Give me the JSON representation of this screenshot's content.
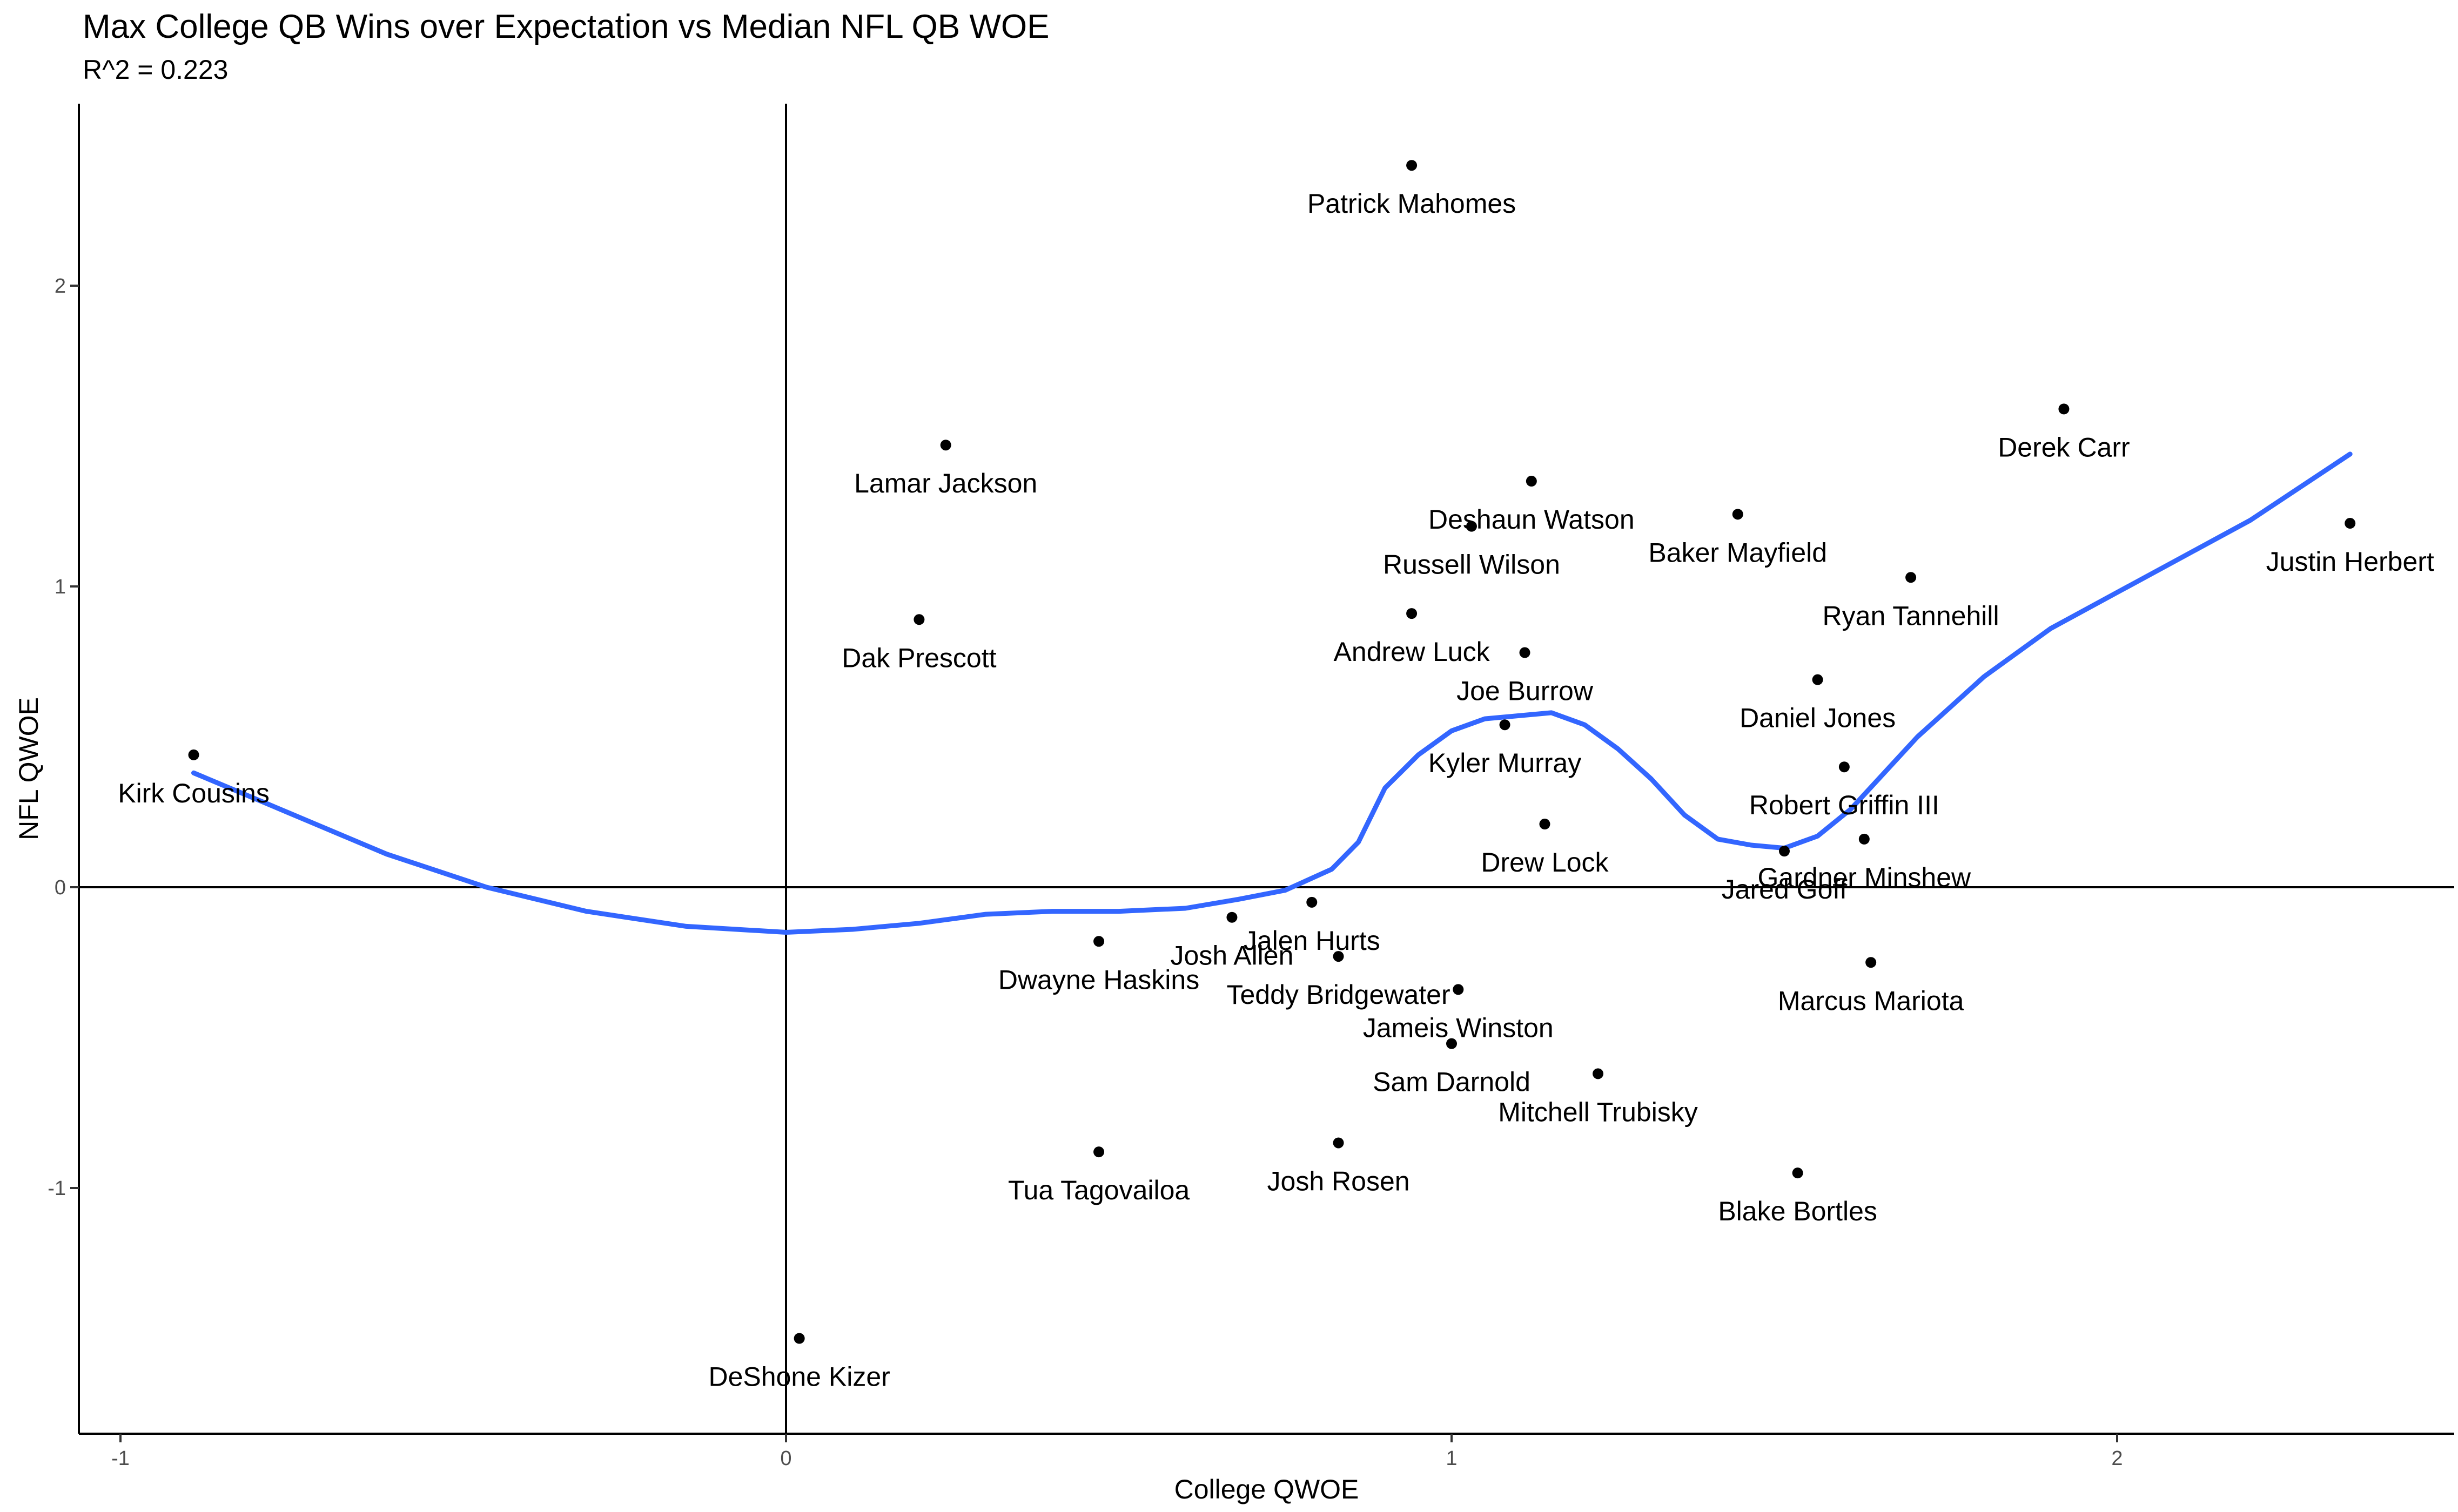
{
  "chart_data": {
    "type": "scatter",
    "title": "Max College QB Wins over Expectation vs Median NFL QB WOE",
    "subtitle": "R^2 = 0.223",
    "xlabel": "College QWOE",
    "ylabel": "NFL QWOE",
    "xlim": [
      -1.06,
      2.5
    ],
    "ylim": [
      -1.83,
      2.6
    ],
    "x_ticks": [
      -1,
      0,
      1,
      2
    ],
    "y_ticks": [
      -1,
      0,
      1,
      2
    ],
    "reference_lines": {
      "x": 0,
      "y": 0
    },
    "grid": false,
    "points": [
      {
        "label": "Patrick Mahomes",
        "x": 0.94,
        "y": 2.4
      },
      {
        "label": "Derek Carr",
        "x": 1.92,
        "y": 1.59
      },
      {
        "label": "Lamar Jackson",
        "x": 0.24,
        "y": 1.47
      },
      {
        "label": "Deshaun Watson",
        "x": 1.12,
        "y": 1.35
      },
      {
        "label": "Baker Mayfield",
        "x": 1.43,
        "y": 1.24
      },
      {
        "label": "Justin Herbert",
        "x": 2.35,
        "y": 1.21
      },
      {
        "label": "Russell Wilson",
        "x": 1.03,
        "y": 1.2
      },
      {
        "label": "Ryan Tannehill",
        "x": 1.69,
        "y": 1.03
      },
      {
        "label": "Andrew Luck",
        "x": 0.94,
        "y": 0.91
      },
      {
        "label": "Dak Prescott",
        "x": 0.2,
        "y": 0.89
      },
      {
        "label": "Joe Burrow",
        "x": 1.11,
        "y": 0.78
      },
      {
        "label": "Daniel Jones",
        "x": 1.55,
        "y": 0.69
      },
      {
        "label": "Kyler Murray",
        "x": 1.08,
        "y": 0.54
      },
      {
        "label": "Kirk Cousins",
        "x": -0.89,
        "y": 0.44
      },
      {
        "label": "Robert Griffin III",
        "x": 1.59,
        "y": 0.4
      },
      {
        "label": "Drew Lock",
        "x": 1.14,
        "y": 0.21
      },
      {
        "label": "Gardner Minshew",
        "x": 1.62,
        "y": 0.16
      },
      {
        "label": "Jared Goff",
        "x": 1.5,
        "y": 0.12
      },
      {
        "label": "Jalen Hurts",
        "x": 0.79,
        "y": -0.05
      },
      {
        "label": "Josh Allen",
        "x": 0.67,
        "y": -0.1
      },
      {
        "label": "Dwayne Haskins",
        "x": 0.47,
        "y": -0.18
      },
      {
        "label": "Teddy Bridgewater",
        "x": 0.83,
        "y": -0.23
      },
      {
        "label": "Marcus Mariota",
        "x": 1.63,
        "y": -0.25
      },
      {
        "label": "Jameis Winston",
        "x": 1.01,
        "y": -0.34
      },
      {
        "label": "Sam Darnold",
        "x": 1.0,
        "y": -0.52
      },
      {
        "label": "Mitchell Trubisky",
        "x": 1.22,
        "y": -0.62
      },
      {
        "label": "Josh Rosen",
        "x": 0.83,
        "y": -0.85
      },
      {
        "label": "Tua Tagovailoa",
        "x": 0.47,
        "y": -0.88
      },
      {
        "label": "Blake Bortles",
        "x": 1.52,
        "y": -0.95
      },
      {
        "label": "DeShone Kizer",
        "x": 0.02,
        "y": -1.5
      }
    ],
    "smooth_curve": {
      "color": "#3366ff",
      "x": [
        -0.89,
        -0.75,
        -0.6,
        -0.45,
        -0.3,
        -0.15,
        0.0,
        0.1,
        0.2,
        0.3,
        0.4,
        0.5,
        0.6,
        0.68,
        0.75,
        0.78,
        0.82,
        0.86,
        0.9,
        0.95,
        1.0,
        1.05,
        1.1,
        1.15,
        1.2,
        1.25,
        1.3,
        1.35,
        1.4,
        1.45,
        1.5,
        1.55,
        1.6,
        1.65,
        1.7,
        1.8,
        1.9,
        2.0,
        2.1,
        2.2,
        2.35
      ],
      "y": [
        0.38,
        0.25,
        0.11,
        0.0,
        -0.08,
        -0.13,
        -0.15,
        -0.14,
        -0.12,
        -0.09,
        -0.08,
        -0.08,
        -0.07,
        -0.04,
        -0.01,
        0.02,
        0.06,
        0.15,
        0.33,
        0.44,
        0.52,
        0.56,
        0.57,
        0.58,
        0.54,
        0.46,
        0.36,
        0.24,
        0.16,
        0.14,
        0.13,
        0.17,
        0.26,
        0.38,
        0.5,
        0.7,
        0.86,
        0.98,
        1.1,
        1.22,
        1.44
      ]
    }
  }
}
